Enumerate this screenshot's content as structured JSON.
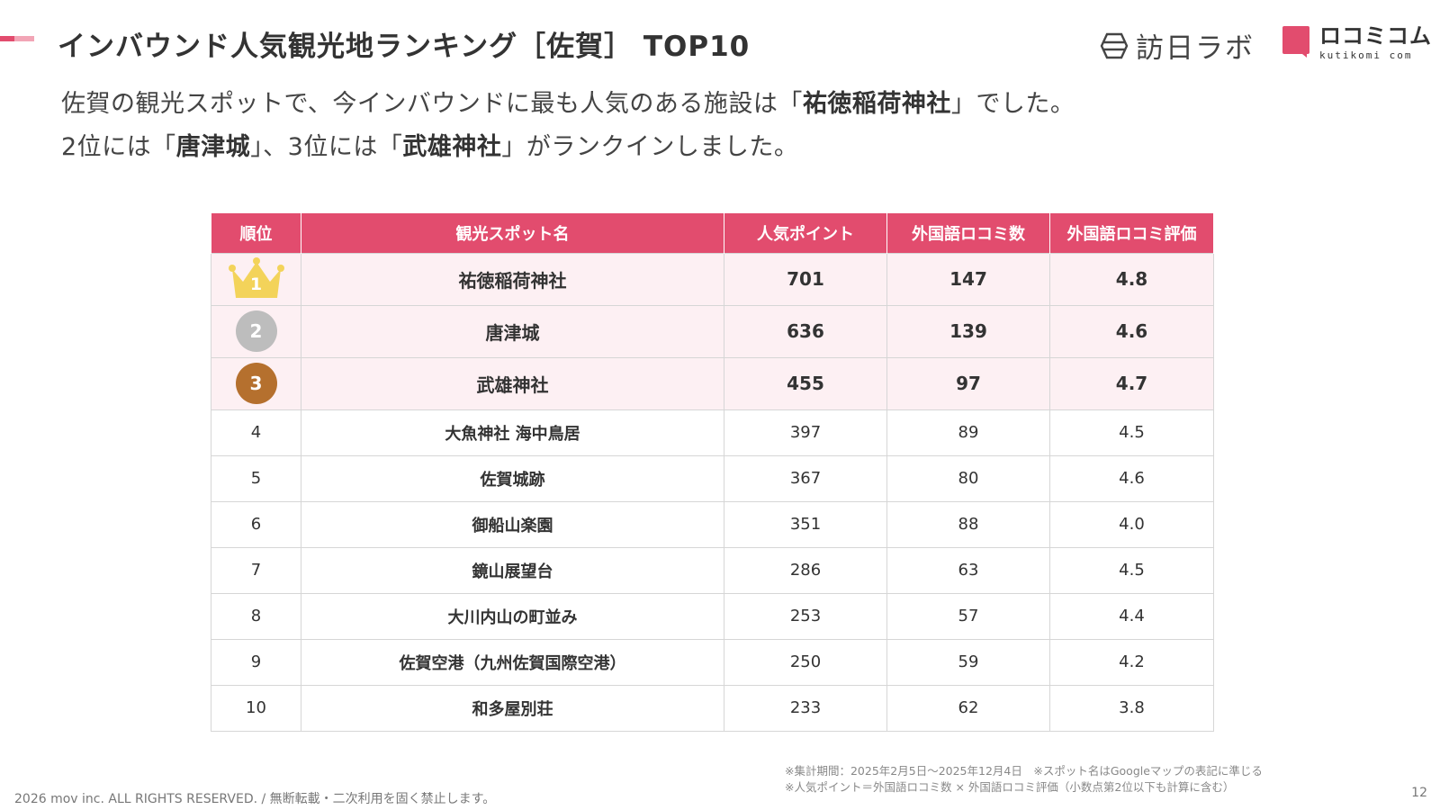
{
  "header": {
    "title": "インバウンド人気観光地ランキング［佐賀］ TOP10",
    "logo_houjitsu": "訪日ラボ",
    "logo_kutikomi_main": "ロコミコム",
    "logo_kutikomi_sub": "kutikomi com"
  },
  "subtitle": {
    "line1_pre": "佐賀の観光スポットで、今インバウンドに最も人気のある施設は「",
    "line1_bold": "祐徳稲荷神社",
    "line1_post": "」でした。",
    "line2_a": "2位には「",
    "line2_b": "唐津城",
    "line2_c": "」、3位には「",
    "line2_d": "武雄神社",
    "line2_e": "」がランクインしました。"
  },
  "table": {
    "headers": [
      "順位",
      "観光スポット名",
      "人気ポイント",
      "外国語ロコミ数",
      "外国語ロコミ評価"
    ],
    "rows": [
      {
        "rank": "1",
        "name": "祐徳稲荷神社",
        "points": "701",
        "reviews": "147",
        "rating": "4.8"
      },
      {
        "rank": "2",
        "name": "唐津城",
        "points": "636",
        "reviews": "139",
        "rating": "4.6"
      },
      {
        "rank": "3",
        "name": "武雄神社",
        "points": "455",
        "reviews": "97",
        "rating": "4.7"
      },
      {
        "rank": "4",
        "name": "大魚神社 海中鳥居",
        "points": "397",
        "reviews": "89",
        "rating": "4.5"
      },
      {
        "rank": "5",
        "name": "佐賀城跡",
        "points": "367",
        "reviews": "80",
        "rating": "4.6"
      },
      {
        "rank": "6",
        "name": "御船山楽園",
        "points": "351",
        "reviews": "88",
        "rating": "4.0"
      },
      {
        "rank": "7",
        "name": "鏡山展望台",
        "points": "286",
        "reviews": "63",
        "rating": "4.5"
      },
      {
        "rank": "8",
        "name": "大川内山の町並み",
        "points": "253",
        "reviews": "57",
        "rating": "4.4"
      },
      {
        "rank": "9",
        "name": "佐賀空港（九州佐賀国際空港）",
        "points": "250",
        "reviews": "59",
        "rating": "4.2"
      },
      {
        "rank": "10",
        "name": "和多屋別荘",
        "points": "233",
        "reviews": "62",
        "rating": "3.8"
      }
    ]
  },
  "notes": {
    "line1": "※集計期間：2025年2月5日〜2025年12月4日　※スポット名はGoogleマップの表記に準じる",
    "line2": "※人気ポイント＝外国語ロコミ数 × 外国語ロコミ評価（小数点第2位以下も計算に含む）"
  },
  "footer": {
    "copyright": "2026 mov inc. ALL RIGHTS RESERVED. / 無断転載・二次利用を固く禁止します。",
    "page_number": "12"
  },
  "colors": {
    "accent": "#e24c6e",
    "accent_light": "#f2a5b6",
    "top_row_bg": "#fdf0f3",
    "gold": "#f3d35a",
    "silver": "#bdbdbd",
    "bronze": "#b5702e"
  },
  "icons": {
    "rank1": "crown-icon",
    "houjitsu_logo": "hexagon-logo-icon",
    "kutikomi_logo": "speech-bubble-logo-icon"
  }
}
